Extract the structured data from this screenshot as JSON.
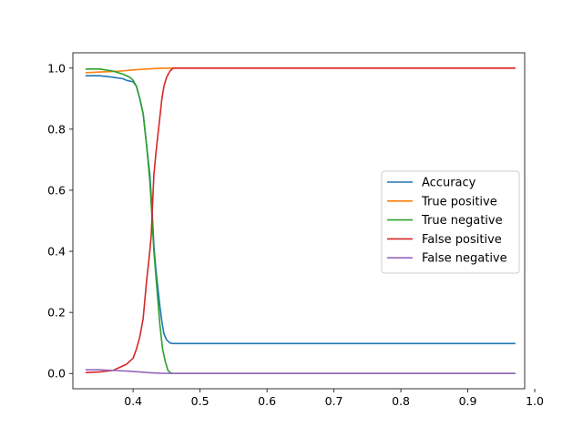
{
  "chart_data": {
    "type": "line",
    "title": "",
    "xlabel": "",
    "ylabel": "",
    "xlim": [
      0.31,
      0.985
    ],
    "ylim": [
      -0.05,
      1.05
    ],
    "xticks": [
      0.4,
      0.5,
      0.6,
      0.7,
      0.8,
      0.9,
      1.0
    ],
    "xtick_labels": [
      "0.4",
      "0.5",
      "0.6",
      "0.7",
      "0.8",
      "0.9",
      "1.0"
    ],
    "yticks": [
      0.0,
      0.2,
      0.4,
      0.6,
      0.8,
      1.0
    ],
    "ytick_labels": [
      "0.0",
      "0.2",
      "0.4",
      "0.6",
      "0.8",
      "1.0"
    ],
    "grid": false,
    "legend_position": "center-right",
    "series": [
      {
        "name": "Accuracy",
        "color": "#1f77b4",
        "x": [
          0.33,
          0.35,
          0.37,
          0.385,
          0.39,
          0.4,
          0.405,
          0.41,
          0.415,
          0.42,
          0.425,
          0.428,
          0.431,
          0.434,
          0.437,
          0.44,
          0.443,
          0.446,
          0.45,
          0.455,
          0.46,
          0.47,
          0.5,
          0.6,
          0.7,
          0.8,
          0.9,
          0.97
        ],
        "y": [
          0.975,
          0.975,
          0.97,
          0.965,
          0.96,
          0.955,
          0.94,
          0.9,
          0.85,
          0.75,
          0.65,
          0.55,
          0.42,
          0.34,
          0.28,
          0.22,
          0.17,
          0.13,
          0.11,
          0.1,
          0.098,
          0.098,
          0.098,
          0.098,
          0.098,
          0.098,
          0.098,
          0.098
        ]
      },
      {
        "name": "True positive",
        "color": "#ff7f0e",
        "x": [
          0.33,
          0.36,
          0.38,
          0.4,
          0.42,
          0.44,
          0.46,
          0.5,
          0.6,
          0.7,
          0.8,
          0.9,
          0.97
        ],
        "y": [
          0.985,
          0.988,
          0.99,
          0.994,
          0.997,
          0.999,
          1.0,
          1.0,
          1.0,
          1.0,
          1.0,
          1.0,
          1.0
        ]
      },
      {
        "name": "True negative",
        "color": "#2ca02c",
        "x": [
          0.33,
          0.35,
          0.37,
          0.385,
          0.395,
          0.4,
          0.405,
          0.41,
          0.415,
          0.42,
          0.425,
          0.428,
          0.431,
          0.434,
          0.437,
          0.44,
          0.444,
          0.448,
          0.452,
          0.456,
          0.46,
          0.5,
          0.6,
          0.7,
          0.8,
          0.9,
          0.97
        ],
        "y": [
          0.997,
          0.997,
          0.99,
          0.98,
          0.97,
          0.96,
          0.94,
          0.9,
          0.85,
          0.75,
          0.63,
          0.52,
          0.4,
          0.32,
          0.24,
          0.16,
          0.08,
          0.04,
          0.01,
          0.002,
          0.0,
          0.0,
          0.0,
          0.0,
          0.0,
          0.0,
          0.0
        ]
      },
      {
        "name": "False positive",
        "color": "#d62728",
        "x": [
          0.33,
          0.35,
          0.37,
          0.38,
          0.39,
          0.4,
          0.405,
          0.41,
          0.415,
          0.42,
          0.424,
          0.427,
          0.429,
          0.431,
          0.434,
          0.437,
          0.44,
          0.443,
          0.446,
          0.45,
          0.455,
          0.46,
          0.5,
          0.6,
          0.7,
          0.8,
          0.9,
          0.97
        ],
        "y": [
          0.003,
          0.005,
          0.01,
          0.02,
          0.03,
          0.05,
          0.08,
          0.12,
          0.18,
          0.3,
          0.38,
          0.45,
          0.55,
          0.65,
          0.72,
          0.78,
          0.84,
          0.9,
          0.94,
          0.97,
          0.99,
          1.0,
          1.0,
          1.0,
          1.0,
          1.0,
          1.0,
          1.0
        ]
      },
      {
        "name": "False negative",
        "color": "#9467bd",
        "x": [
          0.33,
          0.35,
          0.37,
          0.39,
          0.41,
          0.42,
          0.44,
          0.46,
          0.5,
          0.6,
          0.7,
          0.8,
          0.9,
          0.97
        ],
        "y": [
          0.012,
          0.012,
          0.01,
          0.008,
          0.005,
          0.003,
          0.001,
          0.0,
          0.0,
          0.0,
          0.0,
          0.0,
          0.0,
          0.0
        ]
      }
    ]
  }
}
